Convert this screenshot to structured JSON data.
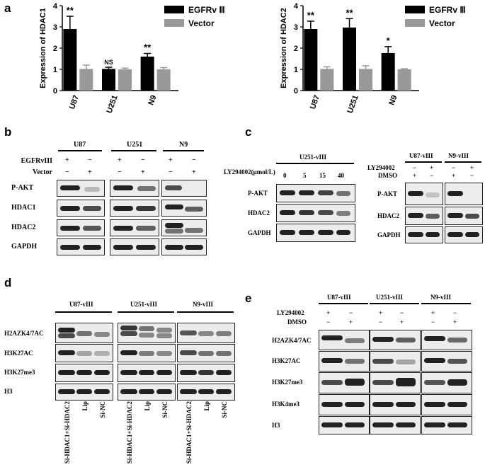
{
  "panels": {
    "a": "a",
    "b": "b",
    "c": "c",
    "d": "d",
    "e": "e"
  },
  "chart_data": [
    {
      "type": "bar",
      "categories": [
        "U87",
        "U251",
        "N9"
      ],
      "ylabel": "Expression of HDAC1",
      "ylim": [
        0,
        4
      ],
      "yticks": [
        0,
        1,
        2,
        3,
        4
      ],
      "series": [
        {
          "name": "EGFRv Ⅲ",
          "color": "#000000",
          "values": [
            2.9,
            1.02,
            1.6
          ],
          "errors": [
            0.6,
            0.08,
            0.15
          ]
        },
        {
          "name": "Vector",
          "color": "#999999",
          "values": [
            1.02,
            1.0,
            1.0
          ],
          "errors": [
            0.18,
            0.06,
            0.08
          ]
        }
      ],
      "annotations": [
        "**",
        "NS",
        "**"
      ]
    },
    {
      "type": "bar",
      "categories": [
        "U87",
        "U251",
        "N9"
      ],
      "ylabel": "Expression of HDAC2",
      "ylim": [
        0,
        4
      ],
      "yticks": [
        0,
        1,
        2,
        3,
        4
      ],
      "series": [
        {
          "name": "EGFRv Ⅲ",
          "color": "#000000",
          "values": [
            2.9,
            2.97,
            1.77
          ],
          "errors": [
            0.37,
            0.42,
            0.3
          ]
        },
        {
          "name": "Vector",
          "color": "#999999",
          "values": [
            1.02,
            1.02,
            1.0
          ],
          "errors": [
            0.1,
            0.15,
            0.03
          ]
        }
      ],
      "annotations": [
        "**",
        "**",
        "*"
      ]
    }
  ],
  "b": {
    "groups": [
      "U87",
      "U251",
      "N9"
    ],
    "row_labels": [
      "EGFRvIII",
      "Vector"
    ],
    "egfr_marks": [
      "+",
      "−",
      "+",
      "−",
      "+",
      "−"
    ],
    "vector_marks": [
      "−",
      "+",
      "−",
      "+",
      "−",
      "+"
    ],
    "blots": [
      "P-AKT",
      "HDAC1",
      "HDAC2",
      "GAPDH"
    ]
  },
  "c1": {
    "header": "U251-vIII",
    "dose_label": "LY294002(μmol/L)",
    "doses": [
      "0",
      "5",
      "15",
      "40"
    ],
    "blots": [
      "P-AKT",
      "HDAC2",
      "GAPDH"
    ]
  },
  "c2": {
    "groups": [
      "U87-vIII",
      "N9-vIII"
    ],
    "row_labels": [
      "LY294002",
      "DMSO"
    ],
    "ly_marks": [
      "−",
      "+",
      "−",
      "+"
    ],
    "dmso_marks": [
      "+",
      "−",
      "+",
      "−"
    ],
    "blots": [
      "P-AKT",
      "HDAC2",
      "GAPDH"
    ]
  },
  "d": {
    "groups": [
      "U87-vIII",
      "U251-vIII",
      "N9-vIII"
    ],
    "blots": [
      "H2AZK4/7AC",
      "H3K27AC",
      "H3K27me3",
      "H3"
    ],
    "lanes": [
      "Si-HDAC1+Si-HDAC2",
      "Lip",
      "Si-NC",
      "Si-HDAC1+Si-HDAC2",
      "Lip",
      "Si-NC",
      "Si-HDAC1+Si-HDAC2",
      "Lip",
      "Si-NC"
    ]
  },
  "e": {
    "groups": [
      "U87-vIII",
      "U251-vIII",
      "N9-vIII"
    ],
    "row_labels": [
      "LY294002",
      "DMSO"
    ],
    "ly_marks": [
      "+",
      "−",
      "+",
      "−",
      "+",
      "−"
    ],
    "dmso_marks": [
      "−",
      "+",
      "−",
      "+",
      "−",
      "+"
    ],
    "blots": [
      "H2AZK4/7AC",
      "H3K27AC",
      "H3K27me3",
      "H3K4me3",
      "H3"
    ]
  }
}
